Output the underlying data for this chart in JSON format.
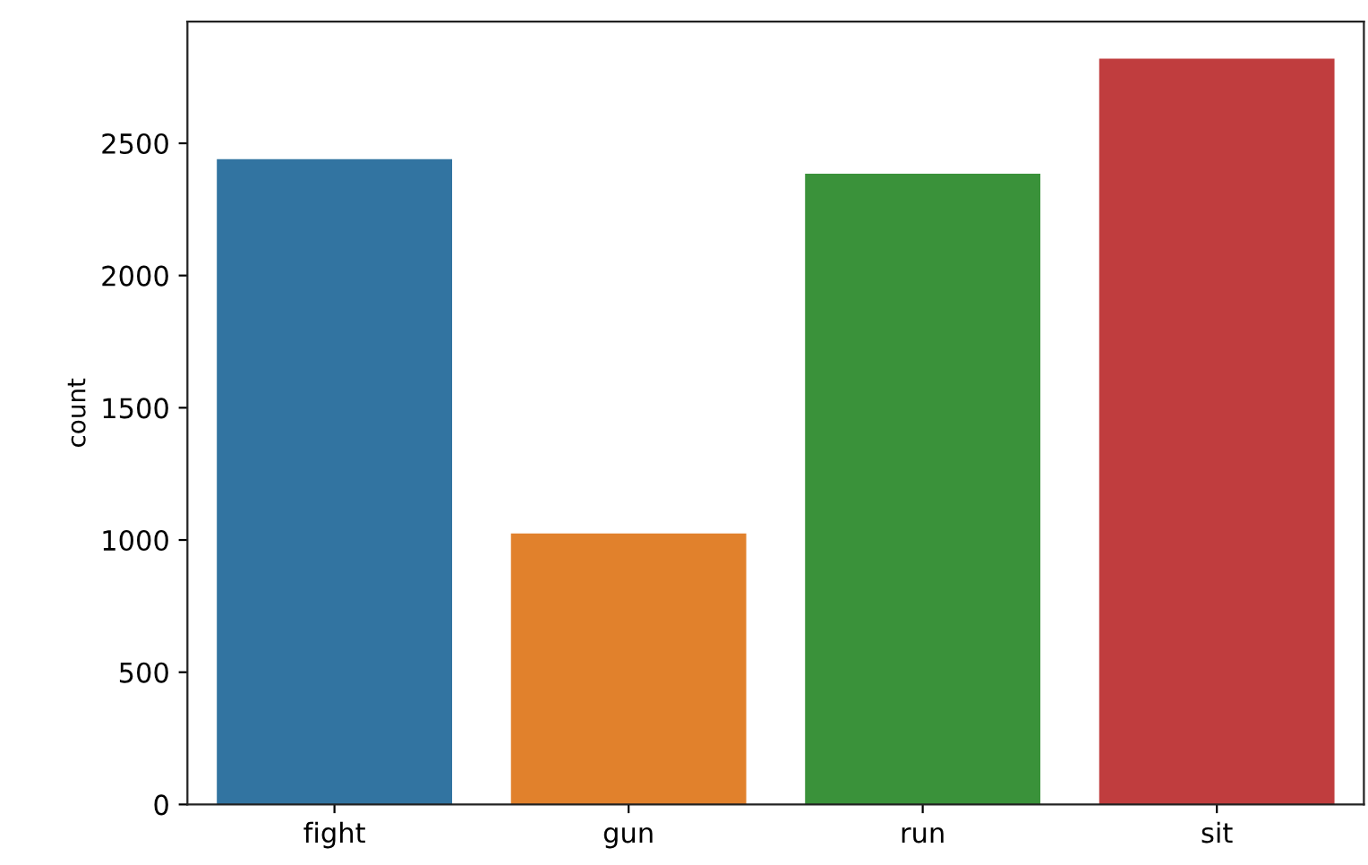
{
  "chart_data": {
    "type": "bar",
    "ylabel": "count",
    "categories": [
      "fight",
      "gun",
      "run",
      "sit"
    ],
    "values": [
      2440,
      1025,
      2385,
      2820
    ],
    "colors": [
      "#3274a1",
      "#e1812c",
      "#3a923a",
      "#c03d3e"
    ],
    "ylim": [
      0,
      2960
    ],
    "yticks": [
      0,
      500,
      1000,
      1500,
      2000,
      2500
    ],
    "grid": false
  }
}
